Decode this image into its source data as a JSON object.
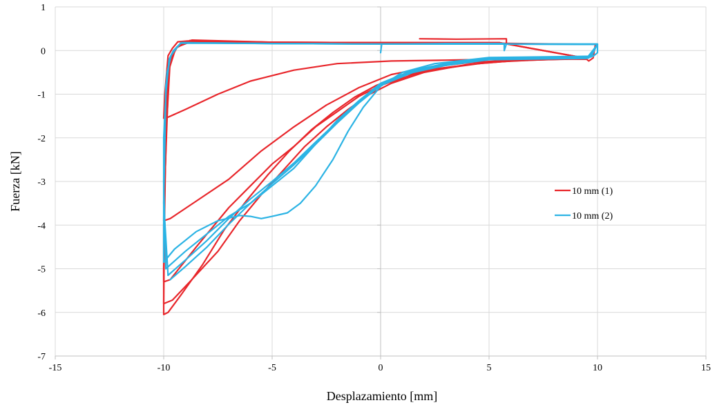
{
  "chart_data": {
    "type": "line",
    "title": "",
    "xlabel": "Desplazamiento [mm]",
    "ylabel": "Fuerza [kN]",
    "xlim": [
      -15,
      15
    ],
    "ylim": [
      -7,
      1
    ],
    "xticks": [
      -15,
      -10,
      -5,
      0,
      5,
      10,
      15
    ],
    "yticks": [
      -7,
      -6,
      -5,
      -4,
      -3,
      -2,
      -1,
      0,
      1
    ],
    "xtick_labels": [
      "-15",
      "-10",
      "-5",
      "0",
      "5",
      "10",
      "15"
    ],
    "ytick_labels": [
      "-7",
      "-6",
      "-5",
      "-4",
      "-3",
      "-2",
      "-1",
      "0",
      "1"
    ],
    "grid": true,
    "legend_position": "right-middle",
    "series": [
      {
        "name": "10 mm (1)",
        "color": "#e8262b",
        "paths": [
          [
            [
              1.8,
              0.27
            ],
            [
              3.5,
              0.26
            ],
            [
              5.8,
              0.27
            ],
            [
              5.8,
              0.15
            ],
            [
              2.0,
              0.18
            ],
            [
              -5.0,
              0.18
            ],
            [
              -8.9,
              0.22
            ],
            [
              -9.35,
              0.2
            ],
            [
              -9.6,
              0.05
            ],
            [
              -9.8,
              -0.12
            ],
            [
              -9.95,
              -1.0
            ],
            [
              -10.0,
              -1.55
            ],
            [
              -9.9,
              -1.55
            ],
            [
              -9.0,
              -1.35
            ],
            [
              -7.5,
              -1.0
            ],
            [
              -6.0,
              -0.7
            ],
            [
              -4.0,
              -0.45
            ],
            [
              -2.0,
              -0.3
            ],
            [
              0.5,
              -0.24
            ],
            [
              3.0,
              -0.22
            ],
            [
              6.0,
              -0.19
            ],
            [
              9.5,
              -0.2
            ],
            [
              9.6,
              -0.24
            ],
            [
              9.8,
              -0.17
            ],
            [
              9.9,
              0.14
            ]
          ],
          [
            [
              9.9,
              0.14
            ],
            [
              5.0,
              0.17
            ],
            [
              0.0,
              0.18
            ],
            [
              -5.0,
              0.19
            ],
            [
              -8.7,
              0.24
            ],
            [
              -9.2,
              0.15
            ],
            [
              -9.55,
              0.0
            ],
            [
              -9.8,
              -0.4
            ],
            [
              -9.95,
              -2.0
            ],
            [
              -10.0,
              -3.9
            ],
            [
              -9.7,
              -3.85
            ],
            [
              -8.5,
              -3.45
            ],
            [
              -7.0,
              -2.95
            ],
            [
              -5.5,
              -2.3
            ],
            [
              -4.0,
              -1.75
            ],
            [
              -2.5,
              -1.25
            ],
            [
              -1.0,
              -0.85
            ],
            [
              0.5,
              -0.55
            ],
            [
              2.0,
              -0.4
            ],
            [
              4.0,
              -0.28
            ],
            [
              6.0,
              -0.22
            ],
            [
              9.5,
              -0.18
            ]
          ],
          [
            [
              9.5,
              -0.18
            ],
            [
              5.5,
              0.18
            ],
            [
              0.0,
              0.18
            ],
            [
              -5.0,
              0.18
            ],
            [
              -8.8,
              0.2
            ],
            [
              -9.35,
              0.1
            ],
            [
              -9.7,
              -0.2
            ],
            [
              -9.9,
              -2.0
            ],
            [
              -10.0,
              -5.0
            ],
            [
              -10.0,
              -5.3
            ],
            [
              -9.7,
              -5.25
            ],
            [
              -8.5,
              -4.5
            ],
            [
              -7.0,
              -3.6
            ],
            [
              -6.0,
              -3.1
            ],
            [
              -5.0,
              -2.6
            ],
            [
              -4.0,
              -2.2
            ],
            [
              -3.0,
              -1.75
            ],
            [
              -2.0,
              -1.4
            ],
            [
              -1.0,
              -1.05
            ],
            [
              0.0,
              -0.8
            ],
            [
              1.5,
              -0.55
            ],
            [
              3.0,
              -0.4
            ],
            [
              5.0,
              -0.27
            ],
            [
              7.0,
              -0.22
            ],
            [
              9.5,
              -0.18
            ]
          ],
          [
            [
              9.5,
              -0.18
            ],
            [
              5.5,
              0.18
            ],
            [
              0.0,
              0.18
            ],
            [
              -5.0,
              0.19
            ],
            [
              -8.7,
              0.21
            ],
            [
              -9.4,
              0.08
            ],
            [
              -9.75,
              -0.3
            ],
            [
              -9.95,
              -3.0
            ],
            [
              -10.0,
              -5.8
            ],
            [
              -9.6,
              -5.72
            ],
            [
              -8.8,
              -5.3
            ],
            [
              -7.5,
              -4.6
            ],
            [
              -6.5,
              -3.9
            ],
            [
              -5.5,
              -3.3
            ],
            [
              -4.5,
              -2.75
            ],
            [
              -3.5,
              -2.2
            ],
            [
              -2.5,
              -1.75
            ],
            [
              -1.5,
              -1.35
            ],
            [
              -0.5,
              -1.0
            ],
            [
              0.5,
              -0.75
            ],
            [
              2.0,
              -0.5
            ],
            [
              4.0,
              -0.32
            ],
            [
              6.0,
              -0.24
            ],
            [
              8.0,
              -0.2
            ],
            [
              9.5,
              -0.18
            ]
          ],
          [
            [
              9.5,
              -0.18
            ],
            [
              5.5,
              0.18
            ],
            [
              0.0,
              0.18
            ],
            [
              -5.0,
              0.19
            ],
            [
              -8.8,
              0.23
            ],
            [
              -9.45,
              0.05
            ],
            [
              -9.8,
              -0.5
            ],
            [
              -10.0,
              -4.0
            ],
            [
              -10.0,
              -6.05
            ],
            [
              -9.8,
              -6.0
            ],
            [
              -9.2,
              -5.6
            ],
            [
              -8.2,
              -4.9
            ],
            [
              -7.2,
              -4.1
            ],
            [
              -6.2,
              -3.45
            ],
            [
              -5.2,
              -2.85
            ],
            [
              -4.2,
              -2.3
            ],
            [
              -3.2,
              -1.82
            ],
            [
              -2.2,
              -1.42
            ],
            [
              -1.2,
              -1.07
            ],
            [
              -0.2,
              -0.8
            ],
            [
              1.0,
              -0.58
            ],
            [
              2.5,
              -0.42
            ],
            [
              4.5,
              -0.3
            ],
            [
              6.5,
              -0.22
            ],
            [
              8.5,
              -0.2
            ],
            [
              9.5,
              -0.18
            ]
          ]
        ]
      },
      {
        "name": "10 mm (2)",
        "color": "#2bb3e4",
        "paths": [
          [
            [
              0.0,
              -0.05
            ],
            [
              0.05,
              0.15
            ],
            [
              3.0,
              0.16
            ],
            [
              5.7,
              0.16
            ],
            [
              5.7,
              0.0
            ],
            [
              5.8,
              0.15
            ],
            [
              10.0,
              0.15
            ],
            [
              10.0,
              -0.05
            ],
            [
              9.8,
              -0.13
            ],
            [
              5.0,
              -0.16
            ],
            [
              2.5,
              -0.3
            ],
            [
              1.0,
              -0.5
            ],
            [
              0.0,
              -0.82
            ],
            [
              -0.8,
              -1.3
            ],
            [
              -1.5,
              -1.85
            ],
            [
              -2.2,
              -2.5
            ],
            [
              -3.0,
              -3.1
            ],
            [
              -3.7,
              -3.5
            ],
            [
              -4.3,
              -3.72
            ],
            [
              -5.0,
              -3.8
            ],
            [
              -5.5,
              -3.85
            ],
            [
              -6.0,
              -3.8
            ],
            [
              -6.5,
              -3.78
            ],
            [
              -7.5,
              -3.9
            ],
            [
              -8.5,
              -4.15
            ],
            [
              -9.5,
              -4.55
            ],
            [
              -10.0,
              -4.85
            ]
          ],
          [
            [
              -10.0,
              -4.85
            ],
            [
              -10.0,
              -2.0
            ],
            [
              -9.85,
              -0.5
            ],
            [
              -9.65,
              -0.1
            ],
            [
              -9.45,
              0.05
            ],
            [
              -9.2,
              0.18
            ],
            [
              -5.0,
              0.16
            ],
            [
              0.0,
              0.15
            ],
            [
              5.0,
              0.15
            ],
            [
              10.0,
              0.15
            ],
            [
              9.7,
              -0.15
            ],
            [
              5.0,
              -0.18
            ],
            [
              3.0,
              -0.3
            ],
            [
              1.5,
              -0.45
            ],
            [
              0.0,
              -0.75
            ],
            [
              -1.0,
              -1.15
            ],
            [
              -2.0,
              -1.6
            ],
            [
              -3.0,
              -2.15
            ],
            [
              -4.0,
              -2.7
            ],
            [
              -5.0,
              -3.1
            ],
            [
              -6.0,
              -3.5
            ],
            [
              -7.0,
              -3.8
            ],
            [
              -8.0,
              -4.2
            ],
            [
              -9.0,
              -4.6
            ],
            [
              -9.9,
              -5.0
            ]
          ],
          [
            [
              -9.9,
              -5.0
            ],
            [
              -10.0,
              -3.0
            ],
            [
              -9.9,
              -0.8
            ],
            [
              -9.7,
              -0.15
            ],
            [
              -9.5,
              0.0
            ],
            [
              -9.2,
              0.18
            ],
            [
              -5.0,
              0.16
            ],
            [
              0.0,
              0.15
            ],
            [
              5.0,
              0.15
            ],
            [
              10.0,
              0.14
            ],
            [
              9.6,
              -0.17
            ],
            [
              5.0,
              -0.2
            ],
            [
              3.0,
              -0.32
            ],
            [
              1.5,
              -0.48
            ],
            [
              0.0,
              -0.78
            ],
            [
              -1.0,
              -1.18
            ],
            [
              -2.0,
              -1.63
            ],
            [
              -3.0,
              -2.1
            ],
            [
              -4.0,
              -2.58
            ],
            [
              -5.0,
              -3.0
            ],
            [
              -6.0,
              -3.4
            ],
            [
              -7.0,
              -3.85
            ],
            [
              -8.0,
              -4.35
            ],
            [
              -9.0,
              -4.8
            ],
            [
              -9.8,
              -5.15
            ]
          ],
          [
            [
              -9.8,
              -5.15
            ],
            [
              -10.0,
              -3.5
            ],
            [
              -9.9,
              -1.0
            ],
            [
              -9.75,
              -0.2
            ],
            [
              -9.55,
              0.0
            ],
            [
              -9.2,
              0.17
            ],
            [
              -5.0,
              0.16
            ],
            [
              0.0,
              0.15
            ],
            [
              5.0,
              0.15
            ],
            [
              10.0,
              0.14
            ],
            [
              9.5,
              -0.18
            ],
            [
              5.0,
              -0.21
            ],
            [
              3.0,
              -0.34
            ],
            [
              1.5,
              -0.5
            ],
            [
              0.0,
              -0.8
            ],
            [
              -1.0,
              -1.2
            ],
            [
              -2.0,
              -1.66
            ],
            [
              -3.0,
              -2.15
            ],
            [
              -4.0,
              -2.62
            ],
            [
              -5.0,
              -3.05
            ],
            [
              -6.0,
              -3.5
            ],
            [
              -7.0,
              -3.98
            ],
            [
              -8.0,
              -4.5
            ],
            [
              -9.0,
              -4.95
            ],
            [
              -9.7,
              -5.25
            ]
          ]
        ]
      }
    ]
  }
}
